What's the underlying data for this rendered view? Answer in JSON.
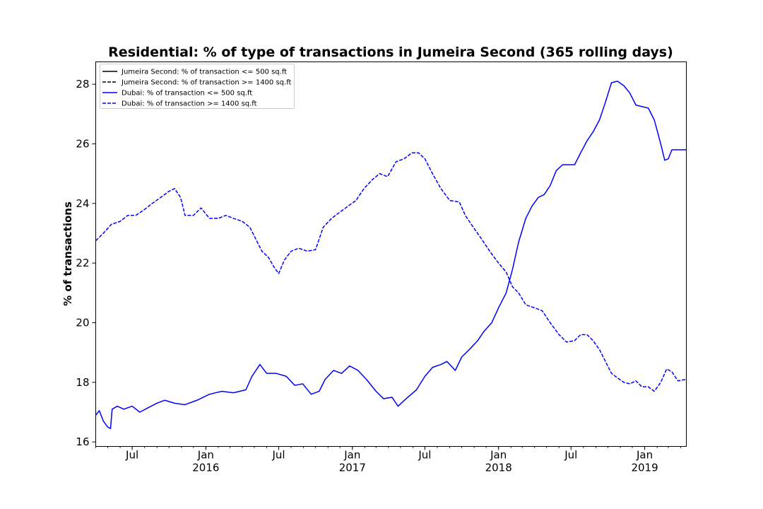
{
  "chart_data": {
    "type": "line",
    "title": "Residential: % of type of transactions in Jumeira Second (365 rolling days)",
    "xlabel": "",
    "ylabel": "% of transactions",
    "xlim": [
      "2015-04-01",
      "2019-04-15"
    ],
    "ylim": [
      15.85,
      28.75
    ],
    "grid": false,
    "legend_position": "top-left",
    "y_ticks": [
      16,
      18,
      20,
      22,
      24,
      26,
      28
    ],
    "x_ticks": [
      {
        "date": "2015-07-01",
        "label": "Jul",
        "sublabel": ""
      },
      {
        "date": "2016-01-01",
        "label": "Jan",
        "sublabel": "2016"
      },
      {
        "date": "2016-07-01",
        "label": "Jul",
        "sublabel": ""
      },
      {
        "date": "2017-01-01",
        "label": "Jan",
        "sublabel": "2017"
      },
      {
        "date": "2017-07-01",
        "label": "Jul",
        "sublabel": ""
      },
      {
        "date": "2018-01-01",
        "label": "Jan",
        "sublabel": "2018"
      },
      {
        "date": "2018-07-01",
        "label": "Jul",
        "sublabel": ""
      },
      {
        "date": "2019-01-01",
        "label": "Jan",
        "sublabel": "2019"
      }
    ],
    "series": [
      {
        "name": "Jumeira Second: % of transaction <= 500 sq.ft",
        "color": "#000000",
        "style": "solid",
        "points": []
      },
      {
        "name": "Jumeira Second: % of transaction >= 1400 sq.ft",
        "color": "#000000",
        "style": "dashed",
        "points": []
      },
      {
        "name": "Dubai: % of transaction <= 500 sq.ft",
        "color": "#0000ff",
        "style": "solid",
        "points": [
          [
            "2015-04-01",
            16.9
          ],
          [
            "2015-04-10",
            17.05
          ],
          [
            "2015-04-20",
            16.7
          ],
          [
            "2015-05-01",
            16.5
          ],
          [
            "2015-05-08",
            16.45
          ],
          [
            "2015-05-12",
            17.1
          ],
          [
            "2015-05-25",
            17.2
          ],
          [
            "2015-06-10",
            17.1
          ],
          [
            "2015-07-01",
            17.2
          ],
          [
            "2015-07-20",
            17.0
          ],
          [
            "2015-08-10",
            17.15
          ],
          [
            "2015-09-01",
            17.3
          ],
          [
            "2015-09-20",
            17.4
          ],
          [
            "2015-10-15",
            17.3
          ],
          [
            "2015-11-10",
            17.25
          ],
          [
            "2015-12-10",
            17.4
          ],
          [
            "2016-01-10",
            17.6
          ],
          [
            "2016-02-10",
            17.7
          ],
          [
            "2016-03-10",
            17.65
          ],
          [
            "2016-04-10",
            17.75
          ],
          [
            "2016-04-25",
            18.2
          ],
          [
            "2016-05-15",
            18.6
          ],
          [
            "2016-06-01",
            18.3
          ],
          [
            "2016-06-25",
            18.3
          ],
          [
            "2016-07-20",
            18.2
          ],
          [
            "2016-08-10",
            17.9
          ],
          [
            "2016-08-30",
            17.95
          ],
          [
            "2016-09-20",
            17.6
          ],
          [
            "2016-10-10",
            17.7
          ],
          [
            "2016-10-25",
            18.1
          ],
          [
            "2016-11-15",
            18.4
          ],
          [
            "2016-12-05",
            18.3
          ],
          [
            "2016-12-25",
            18.55
          ],
          [
            "2017-01-15",
            18.4
          ],
          [
            "2017-02-05",
            18.1
          ],
          [
            "2017-03-01",
            17.7
          ],
          [
            "2017-03-20",
            17.45
          ],
          [
            "2017-04-10",
            17.5
          ],
          [
            "2017-04-25",
            17.2
          ],
          [
            "2017-05-15",
            17.45
          ],
          [
            "2017-06-10",
            17.75
          ],
          [
            "2017-07-01",
            18.2
          ],
          [
            "2017-07-20",
            18.5
          ],
          [
            "2017-08-10",
            18.6
          ],
          [
            "2017-08-25",
            18.7
          ],
          [
            "2017-09-15",
            18.4
          ],
          [
            "2017-10-01",
            18.85
          ],
          [
            "2017-10-20",
            19.1
          ],
          [
            "2017-11-10",
            19.4
          ],
          [
            "2017-11-25",
            19.7
          ],
          [
            "2017-12-15",
            20.0
          ],
          [
            "2018-01-01",
            20.5
          ],
          [
            "2018-01-20",
            21.0
          ],
          [
            "2018-02-05",
            21.8
          ],
          [
            "2018-02-20",
            22.7
          ],
          [
            "2018-03-10",
            23.5
          ],
          [
            "2018-03-25",
            23.9
          ],
          [
            "2018-04-10",
            24.2
          ],
          [
            "2018-04-25",
            24.3
          ],
          [
            "2018-05-10",
            24.6
          ],
          [
            "2018-05-25",
            25.1
          ],
          [
            "2018-06-10",
            25.3
          ],
          [
            "2018-06-25",
            25.3
          ],
          [
            "2018-07-10",
            25.3
          ],
          [
            "2018-07-25",
            25.7
          ],
          [
            "2018-08-10",
            26.1
          ],
          [
            "2018-08-25",
            26.4
          ],
          [
            "2018-09-10",
            26.8
          ],
          [
            "2018-09-25",
            27.4
          ],
          [
            "2018-10-10",
            28.05
          ],
          [
            "2018-10-25",
            28.1
          ],
          [
            "2018-11-10",
            27.95
          ],
          [
            "2018-11-25",
            27.7
          ],
          [
            "2018-12-10",
            27.3
          ],
          [
            "2018-12-25",
            27.25
          ],
          [
            "2019-01-10",
            27.2
          ],
          [
            "2019-01-25",
            26.8
          ],
          [
            "2019-02-10",
            26.0
          ],
          [
            "2019-02-20",
            25.45
          ],
          [
            "2019-03-01",
            25.5
          ],
          [
            "2019-03-10",
            25.8
          ],
          [
            "2019-03-25",
            25.8
          ],
          [
            "2019-04-15",
            25.8
          ]
        ]
      },
      {
        "name": "Dubai: % of transaction >= 1400 sq.ft",
        "color": "#0000ff",
        "style": "dashed",
        "points": [
          [
            "2015-04-01",
            22.75
          ],
          [
            "2015-04-20",
            23.0
          ],
          [
            "2015-05-10",
            23.3
          ],
          [
            "2015-06-01",
            23.4
          ],
          [
            "2015-06-20",
            23.6
          ],
          [
            "2015-07-10",
            23.6
          ],
          [
            "2015-08-01",
            23.8
          ],
          [
            "2015-08-20",
            24.0
          ],
          [
            "2015-09-10",
            24.2
          ],
          [
            "2015-09-30",
            24.4
          ],
          [
            "2015-10-15",
            24.5
          ],
          [
            "2015-10-30",
            24.2
          ],
          [
            "2015-11-10",
            23.6
          ],
          [
            "2015-12-01",
            23.6
          ],
          [
            "2015-12-20",
            23.85
          ],
          [
            "2016-01-10",
            23.5
          ],
          [
            "2016-02-01",
            23.5
          ],
          [
            "2016-02-20",
            23.6
          ],
          [
            "2016-03-10",
            23.5
          ],
          [
            "2016-04-01",
            23.4
          ],
          [
            "2016-04-20",
            23.2
          ],
          [
            "2016-05-05",
            22.8
          ],
          [
            "2016-05-20",
            22.4
          ],
          [
            "2016-06-05",
            22.2
          ],
          [
            "2016-06-20",
            21.85
          ],
          [
            "2016-07-01",
            21.65
          ],
          [
            "2016-07-15",
            22.1
          ],
          [
            "2016-08-01",
            22.4
          ],
          [
            "2016-08-20",
            22.5
          ],
          [
            "2016-09-10",
            22.4
          ],
          [
            "2016-10-01",
            22.45
          ],
          [
            "2016-10-20",
            23.2
          ],
          [
            "2016-11-10",
            23.5
          ],
          [
            "2016-11-30",
            23.7
          ],
          [
            "2016-12-20",
            23.9
          ],
          [
            "2017-01-10",
            24.1
          ],
          [
            "2017-01-30",
            24.5
          ],
          [
            "2017-02-20",
            24.8
          ],
          [
            "2017-03-10",
            25.0
          ],
          [
            "2017-03-30",
            24.9
          ],
          [
            "2017-04-20",
            25.4
          ],
          [
            "2017-05-10",
            25.5
          ],
          [
            "2017-05-30",
            25.7
          ],
          [
            "2017-06-15",
            25.7
          ],
          [
            "2017-07-01",
            25.5
          ],
          [
            "2017-07-20",
            25.0
          ],
          [
            "2017-08-10",
            24.5
          ],
          [
            "2017-09-01",
            24.1
          ],
          [
            "2017-09-25",
            24.05
          ],
          [
            "2017-10-10",
            23.6
          ],
          [
            "2017-10-30",
            23.2
          ],
          [
            "2017-11-20",
            22.8
          ],
          [
            "2017-12-10",
            22.4
          ],
          [
            "2018-01-01",
            22.0
          ],
          [
            "2018-01-20",
            21.7
          ],
          [
            "2018-02-05",
            21.2
          ],
          [
            "2018-02-20",
            21.0
          ],
          [
            "2018-03-10",
            20.6
          ],
          [
            "2018-04-01",
            20.5
          ],
          [
            "2018-04-20",
            20.4
          ],
          [
            "2018-05-10",
            20.0
          ],
          [
            "2018-06-01",
            19.6
          ],
          [
            "2018-06-20",
            19.35
          ],
          [
            "2018-07-10",
            19.4
          ],
          [
            "2018-07-25",
            19.6
          ],
          [
            "2018-08-10",
            19.6
          ],
          [
            "2018-08-25",
            19.4
          ],
          [
            "2018-09-10",
            19.1
          ],
          [
            "2018-09-25",
            18.7
          ],
          [
            "2018-10-10",
            18.3
          ],
          [
            "2018-10-25",
            18.15
          ],
          [
            "2018-11-10",
            18.0
          ],
          [
            "2018-11-25",
            17.95
          ],
          [
            "2018-12-10",
            18.05
          ],
          [
            "2018-12-25",
            17.85
          ],
          [
            "2019-01-10",
            17.85
          ],
          [
            "2019-01-25",
            17.7
          ],
          [
            "2019-02-10",
            18.0
          ],
          [
            "2019-02-25",
            18.45
          ],
          [
            "2019-03-10",
            18.35
          ],
          [
            "2019-03-25",
            18.05
          ],
          [
            "2019-04-15",
            18.1
          ]
        ]
      }
    ]
  }
}
